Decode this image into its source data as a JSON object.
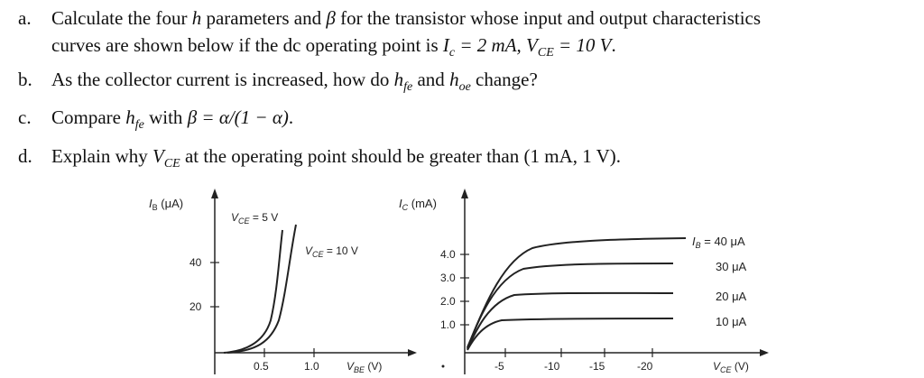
{
  "questions": {
    "a": {
      "letter": "a.",
      "line1_pre": "Calculate the four ",
      "h_var": "h",
      "line1_mid": " parameters and ",
      "beta": "β",
      "line1_post": " for the transistor whose input and output characteristics",
      "line2_pre": "curves are shown below if the dc operating point is ",
      "ic_var": "I",
      "ic_sub": "c",
      "ic_val": " = 2 mA, ",
      "vce_var": "V",
      "vce_sub": "CE",
      "vce_val": " = 10 V",
      "line2_post": "."
    },
    "b": {
      "letter": "b.",
      "pre": "As the collector current is increased, how do ",
      "hfe_var": "h",
      "hfe_sub": "fe",
      "mid": " and ",
      "hoe_var": "h",
      "hoe_sub": "oe",
      "post": " change?"
    },
    "c": {
      "letter": "c.",
      "pre": "Compare ",
      "hfe_var": "h",
      "hfe_sub": "fe",
      "mid": " with ",
      "formula": "β = α/(1 − α)",
      "post": "."
    },
    "d": {
      "letter": "d.",
      "pre": "Explain why ",
      "vce_var": "V",
      "vce_sub": "CE",
      "post": " at the operating point should be greater than (1 mA, 1 V)."
    }
  },
  "input_plot": {
    "ylabel": "I_B (μA)",
    "y_ticks": [
      "40",
      "20"
    ],
    "x_ticks": [
      "0.5",
      "1.0"
    ],
    "xlabel": "V_BE (V)",
    "curve_labels": [
      "V_CE = 5 V",
      "V_CE = 10 V"
    ]
  },
  "output_plot": {
    "ylabel": "I_C (mA)",
    "y_ticks": [
      "4.0",
      "3.0",
      "2.0",
      "1.0"
    ],
    "x_ticks": [
      "-5",
      "-10",
      "-15",
      "-20"
    ],
    "xlabel": "V_CE (V)",
    "curve_labels": [
      "I_B = 40 μA",
      "30 μA",
      "20 μA",
      "10 μA"
    ]
  }
}
